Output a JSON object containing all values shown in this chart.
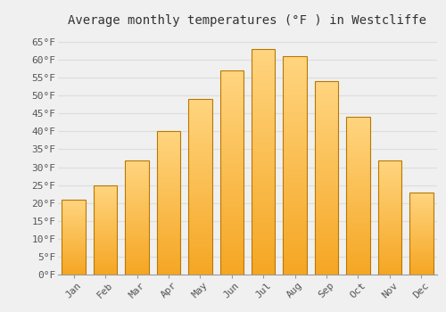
{
  "title": "Average monthly temperatures (°F ) in Westcliffe",
  "months": [
    "Jan",
    "Feb",
    "Mar",
    "Apr",
    "May",
    "Jun",
    "Jul",
    "Aug",
    "Sep",
    "Oct",
    "Nov",
    "Dec"
  ],
  "values": [
    21,
    25,
    32,
    40,
    49,
    57,
    63,
    61,
    54,
    44,
    32,
    23
  ],
  "bar_color_bottom": "#F5A623",
  "bar_color_top": "#FFD580",
  "bar_edge_color": "#B87800",
  "background_color": "#F0F0F0",
  "grid_color": "#DDDDDD",
  "yticks": [
    0,
    5,
    10,
    15,
    20,
    25,
    30,
    35,
    40,
    45,
    50,
    55,
    60,
    65
  ],
  "ylim": [
    0,
    68
  ],
  "title_fontsize": 10,
  "tick_fontsize": 8,
  "font_family": "monospace"
}
